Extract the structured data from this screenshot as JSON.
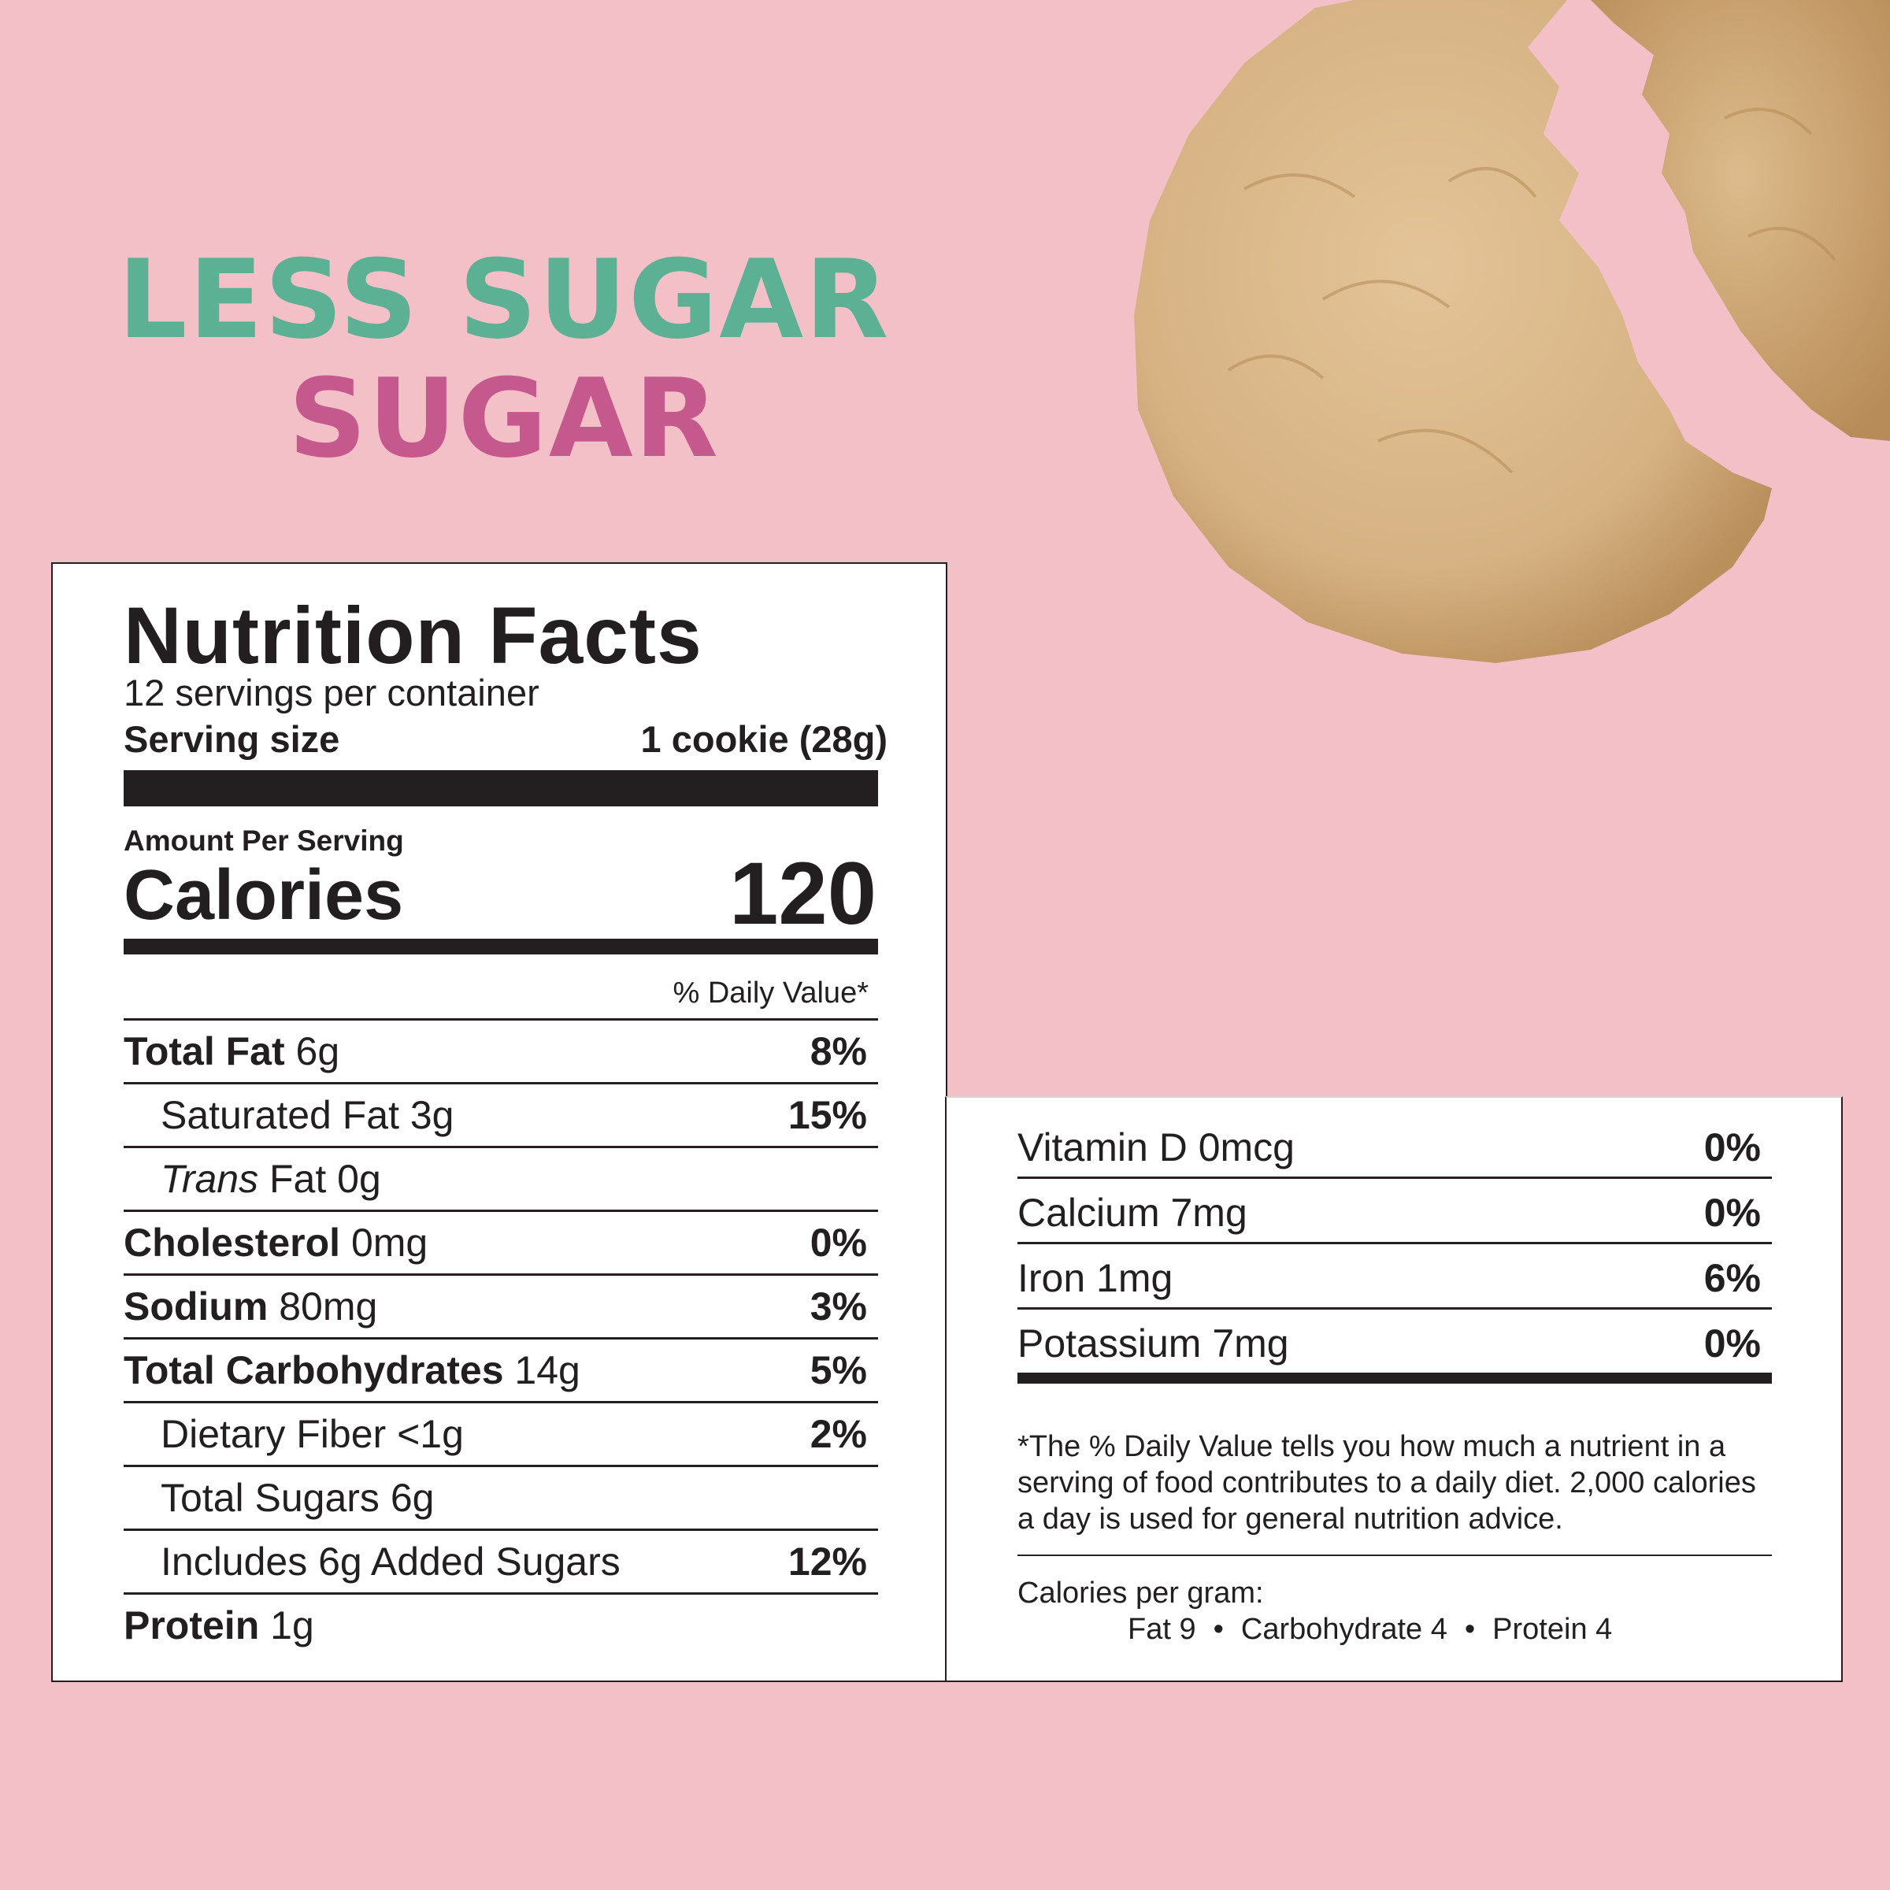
{
  "headline": {
    "line1": "LESS SUGAR",
    "line2": "SUGAR"
  },
  "colors": {
    "background": "#f3c0c8",
    "green": "#5cb194",
    "pink": "#c5588c",
    "ink": "#231f20",
    "cookie": "#d9b588"
  },
  "label": {
    "title": "Nutrition Facts",
    "servings_per_container": "12 servings per container",
    "serving_size_label": "Serving size",
    "serving_size_value": "1 cookie (28g)",
    "amount_per_serving": "Amount Per Serving",
    "calories_label": "Calories",
    "calories_value": "120",
    "daily_value_header": "% Daily Value*",
    "nutrients": [
      {
        "bold": "Total Fat",
        "rest": " 6g",
        "pct": "8%"
      },
      {
        "bold": "",
        "rest": "Saturated Fat 3g",
        "pct": "15%"
      },
      {
        "italic": "Trans",
        "rest": " Fat 0g",
        "pct": ""
      },
      {
        "bold": "Cholesterol",
        "rest": " 0mg",
        "pct": "0%"
      },
      {
        "bold": "Sodium",
        "rest": " 80mg",
        "pct": "3%"
      },
      {
        "bold": "Total Carbohydrates",
        "rest": " 14g",
        "pct": "5%"
      },
      {
        "bold": "",
        "rest": "Dietary Fiber <1g",
        "pct": "2%"
      },
      {
        "bold": "",
        "rest": "Total Sugars 6g",
        "pct": ""
      },
      {
        "bold": "",
        "rest": "Includes 6g Added Sugars",
        "pct": "12%"
      },
      {
        "bold": "Protein",
        "rest": " 1g",
        "pct": ""
      }
    ],
    "vitamins": [
      {
        "name": "Vitamin D 0mcg",
        "pct": "0%"
      },
      {
        "name": "Calcium 7mg",
        "pct": "0%"
      },
      {
        "name": "Iron 1mg",
        "pct": "6%"
      },
      {
        "name": "Potassium 7mg",
        "pct": "0%"
      }
    ],
    "footnote": "*The % Daily Value tells you how much a nutrient in a serving of food contributes to a daily diet. 2,000 calories a day is used for general nutrition advice.",
    "calories_per_gram_label": "Calories per gram:",
    "calories_per_gram": {
      "fat": "Fat 9",
      "carb": "Carbohydrate 4",
      "protein": "Protein 4",
      "separator": "•"
    }
  }
}
